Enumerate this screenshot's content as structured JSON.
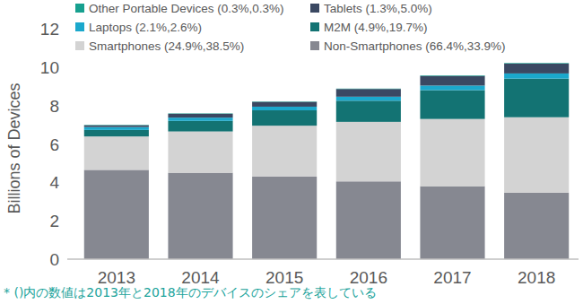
{
  "chart_data": {
    "type": "bar",
    "stacked": true,
    "grid": false,
    "legend": "top",
    "y_label": "Billions of Devices",
    "footnote": "* ()内の数値は2013年と2018年のデバイスのシェアを表している",
    "categories": [
      "2013",
      "2014",
      "2015",
      "2016",
      "2017",
      "2018"
    ],
    "ylim": [
      0,
      12
    ],
    "yticks": [
      0,
      2,
      4,
      6,
      8,
      10,
      12
    ],
    "series": [
      {
        "name": "Non-Smartphones (66.4%,33.9%)",
        "color": "#868891",
        "values": [
          4.65,
          4.5,
          4.3,
          4.05,
          3.8,
          3.46
        ]
      },
      {
        "name": "Smartphones (24.9%,38.5%)",
        "color": "#d3d3d3",
        "values": [
          1.74,
          2.15,
          2.65,
          3.1,
          3.5,
          3.93
        ]
      },
      {
        "name": "M2M (4.9%,19.7%)",
        "color": "#137373",
        "values": [
          0.34,
          0.55,
          0.8,
          1.1,
          1.5,
          2.01
        ]
      },
      {
        "name": "Laptops (2.1%,2.6%)",
        "color": "#1ba8cc",
        "values": [
          0.15,
          0.17,
          0.19,
          0.21,
          0.24,
          0.27
        ]
      },
      {
        "name": "Tablets (1.3%,5.0%)",
        "color": "#3a4862",
        "values": [
          0.09,
          0.2,
          0.25,
          0.4,
          0.5,
          0.51
        ]
      },
      {
        "name": "Other Portable Devices (0.3%,0.3%)",
        "color": "#17a08f",
        "values": [
          0.02,
          0.02,
          0.02,
          0.02,
          0.03,
          0.03
        ]
      }
    ]
  }
}
